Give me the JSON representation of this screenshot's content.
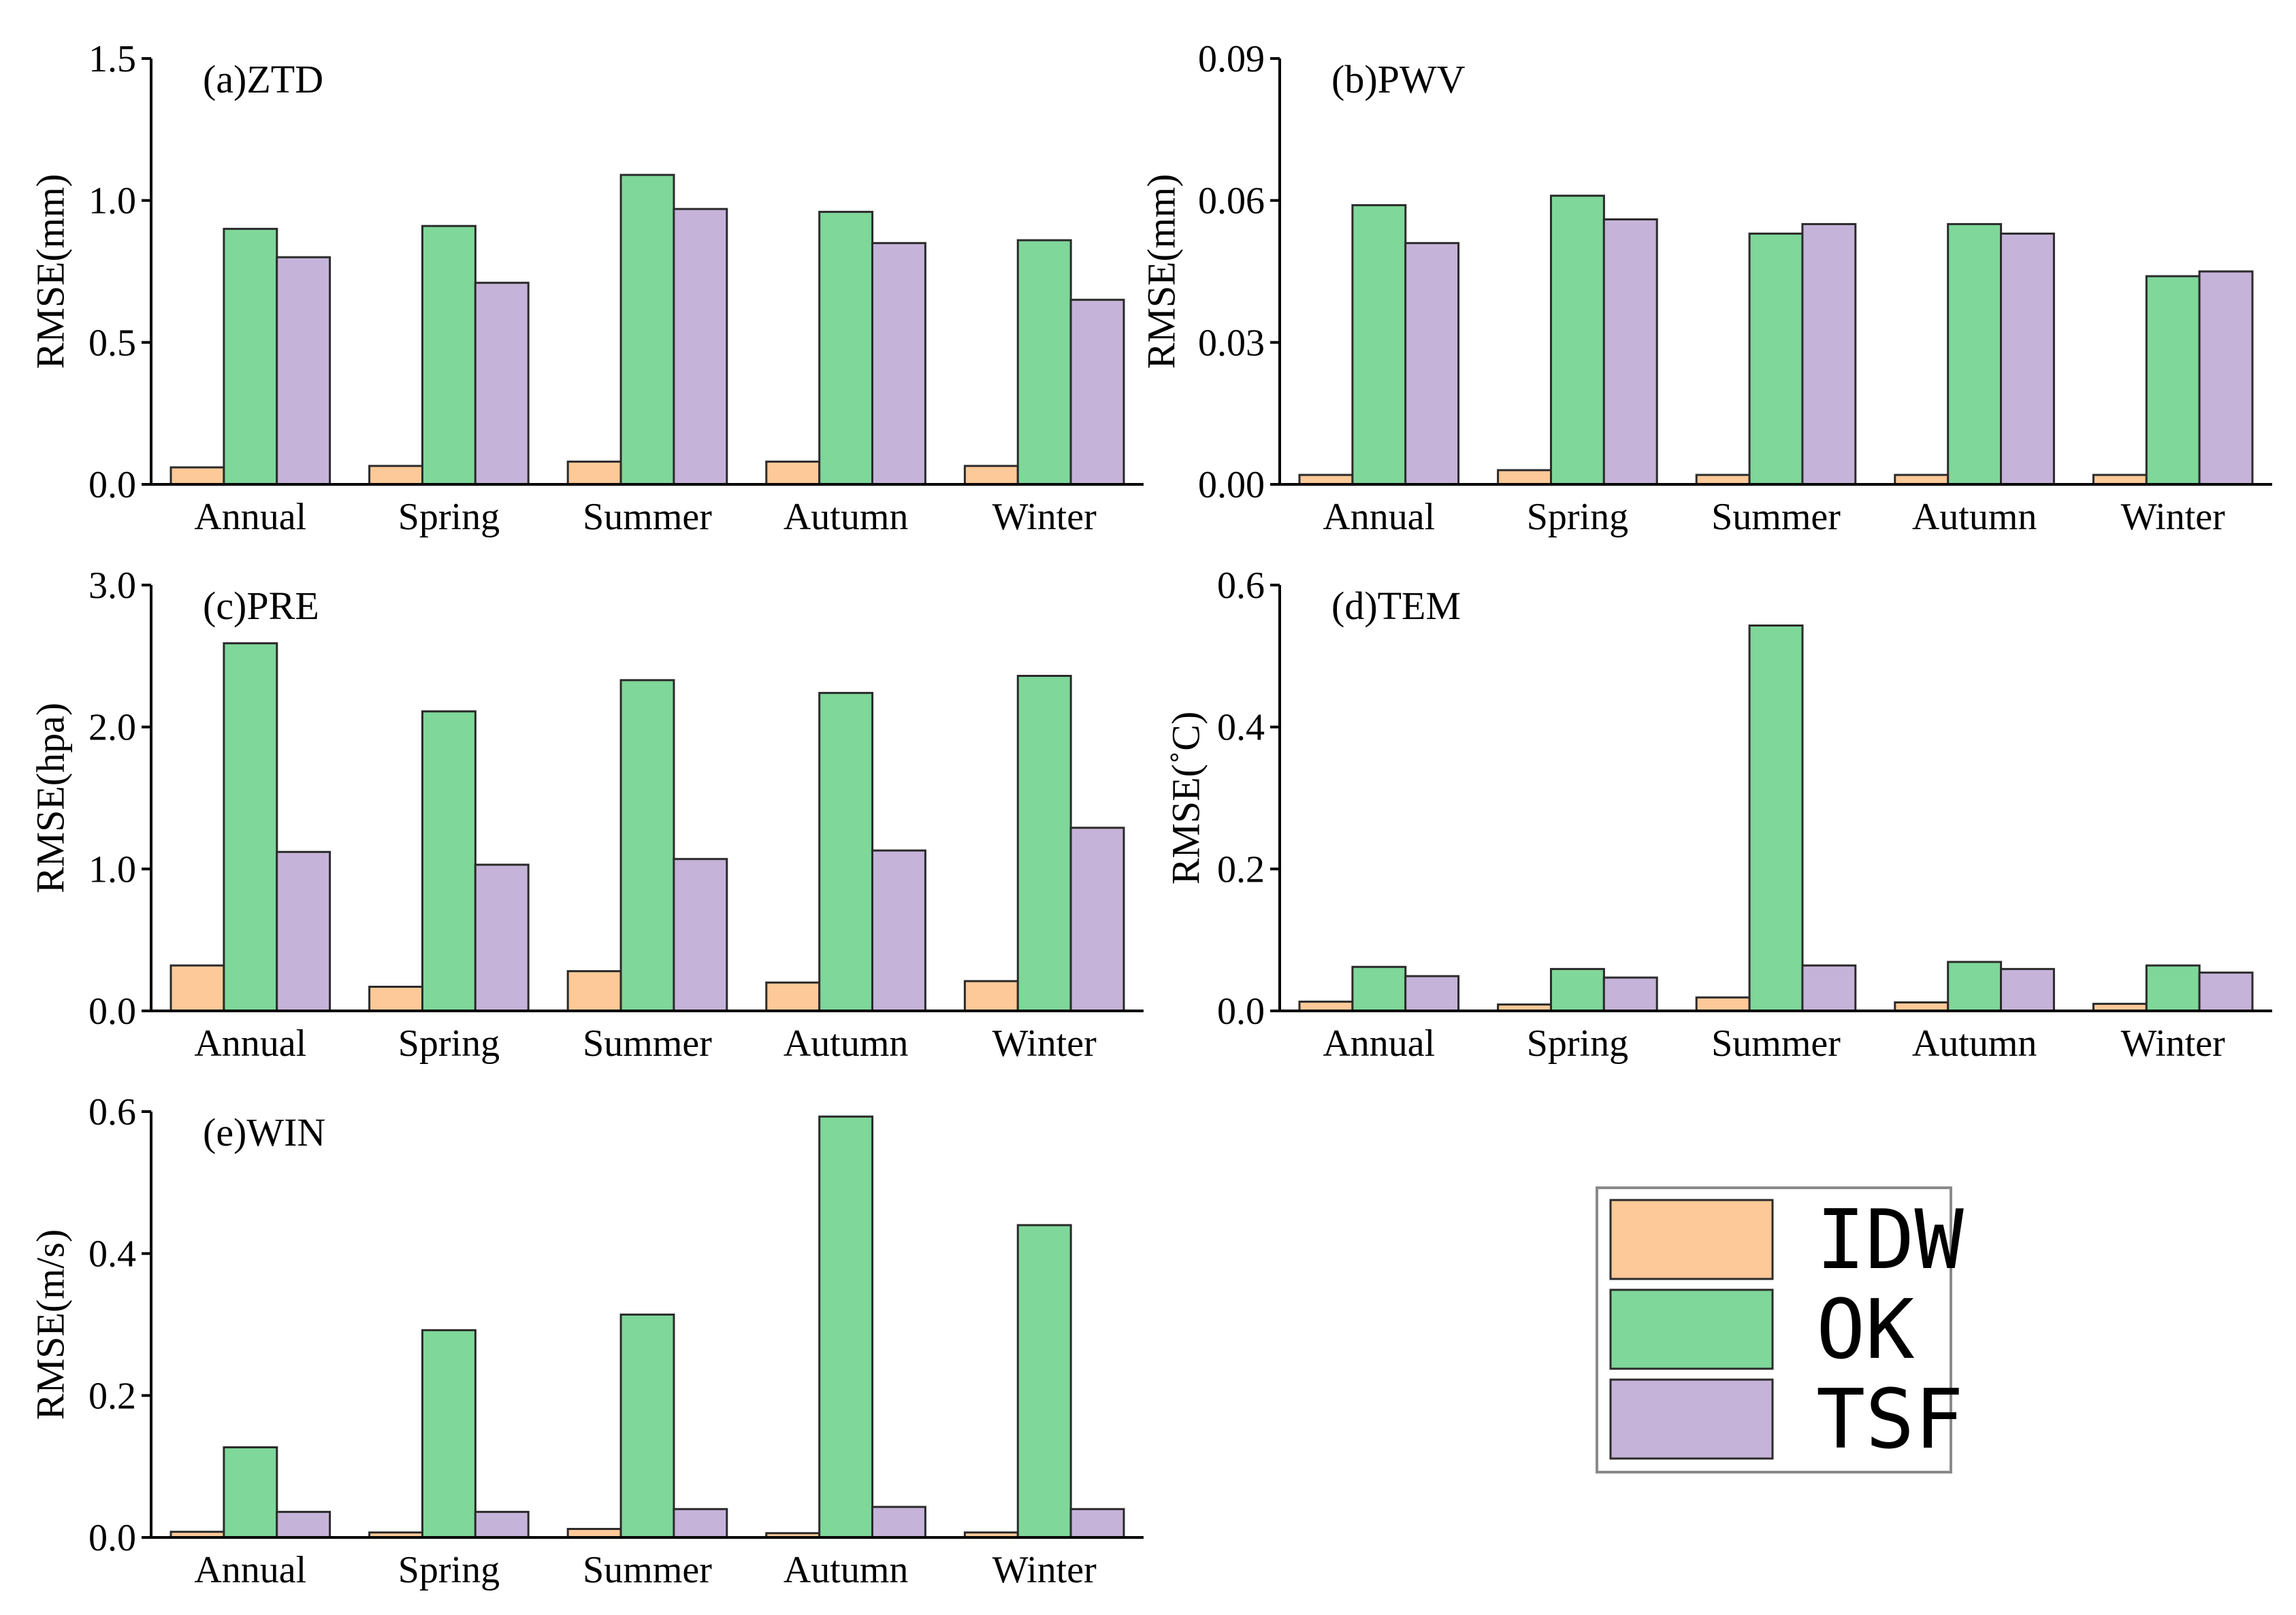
{
  "chart_data": [
    {
      "type": "bar",
      "panel": "(a)ZTD",
      "ylabel": "RMSE(mm)",
      "categories": [
        "Annual",
        "Spring",
        "Summer",
        "Autumn",
        "Winter"
      ],
      "ylim": [
        0,
        1.5
      ],
      "yticks": [
        "0.0",
        "0.5",
        "1.0",
        "1.5"
      ],
      "series": [
        {
          "name": "IDW",
          "values": [
            0.06,
            0.065,
            0.08,
            0.08,
            0.065
          ]
        },
        {
          "name": "OK",
          "values": [
            0.9,
            0.91,
            1.09,
            0.96,
            0.86
          ]
        },
        {
          "name": "TSF",
          "values": [
            0.8,
            0.71,
            0.97,
            0.85,
            0.65
          ]
        }
      ]
    },
    {
      "type": "bar",
      "panel": "(b)PWV",
      "ylabel": "RMSE(mm)",
      "categories": [
        "Annual",
        "Spring",
        "Summer",
        "Autumn",
        "Winter"
      ],
      "ylim": [
        0,
        0.09
      ],
      "yticks": [
        "0.00",
        "0.03",
        "0.06",
        "0.09"
      ],
      "series": [
        {
          "name": "IDW",
          "values": [
            0.002,
            0.003,
            0.002,
            0.002,
            0.002
          ]
        },
        {
          "name": "OK",
          "values": [
            0.059,
            0.061,
            0.053,
            0.055,
            0.044
          ]
        },
        {
          "name": "TSF",
          "values": [
            0.051,
            0.056,
            0.055,
            0.053,
            0.045
          ]
        }
      ]
    },
    {
      "type": "bar",
      "panel": "(c)PRE",
      "ylabel": "RMSE(hpa)",
      "categories": [
        "Annual",
        "Spring",
        "Summer",
        "Autumn",
        "Winter"
      ],
      "ylim": [
        0,
        3.0
      ],
      "yticks": [
        "0.0",
        "1.0",
        "2.0",
        "3.0"
      ],
      "series": [
        {
          "name": "IDW",
          "values": [
            0.32,
            0.17,
            0.28,
            0.2,
            0.21
          ]
        },
        {
          "name": "OK",
          "values": [
            2.59,
            2.11,
            2.33,
            2.24,
            2.36
          ]
        },
        {
          "name": "TSF",
          "values": [
            1.12,
            1.03,
            1.07,
            1.13,
            1.29
          ]
        }
      ]
    },
    {
      "type": "bar",
      "panel": "(d)TEM",
      "ylabel": "RMSE(˚C)",
      "categories": [
        "Annual",
        "Spring",
        "Summer",
        "Autumn",
        "Winter"
      ],
      "ylim": [
        0,
        0.6
      ],
      "yticks": [
        "0.0",
        "0.2",
        "0.4",
        "0.6"
      ],
      "series": [
        {
          "name": "IDW",
          "values": [
            0.013,
            0.009,
            0.019,
            0.012,
            0.01
          ]
        },
        {
          "name": "OK",
          "values": [
            0.062,
            0.059,
            0.543,
            0.069,
            0.064
          ]
        },
        {
          "name": "TSF",
          "values": [
            0.049,
            0.047,
            0.064,
            0.059,
            0.054
          ]
        }
      ]
    },
    {
      "type": "bar",
      "panel": "(e)WIN",
      "ylabel": "RMSE(m/s)",
      "categories": [
        "Annual",
        "Spring",
        "Summer",
        "Autumn",
        "Winter"
      ],
      "ylim": [
        0,
        0.6
      ],
      "yticks": [
        "0.0",
        "0.2",
        "0.4",
        "0.6"
      ],
      "series": [
        {
          "name": "IDW",
          "values": [
            0.008,
            0.007,
            0.012,
            0.006,
            0.007
          ]
        },
        {
          "name": "OK",
          "values": [
            0.127,
            0.292,
            0.314,
            0.593,
            0.44
          ]
        },
        {
          "name": "TSF",
          "values": [
            0.036,
            0.036,
            0.04,
            0.043,
            0.04
          ]
        }
      ]
    }
  ],
  "legend": [
    {
      "name": "IDW",
      "color": "#fdc998"
    },
    {
      "name": "OK",
      "color": "#7fd79a"
    },
    {
      "name": "TSF",
      "color": "#c6b3d9"
    }
  ]
}
